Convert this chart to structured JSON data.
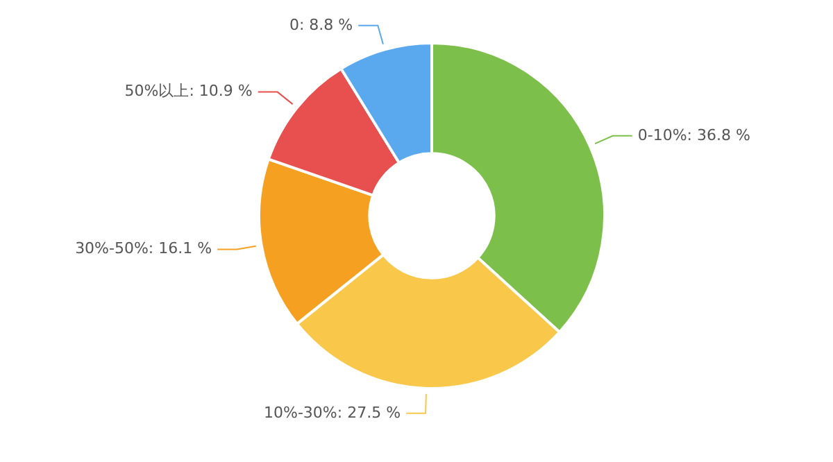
{
  "chart_data": {
    "type": "donut",
    "categories": [
      "0-10%",
      "10%-30%",
      "30%-50%",
      "50%以上",
      "0"
    ],
    "values": [
      36.8,
      27.5,
      16.1,
      10.9,
      8.8
    ],
    "value_labels": [
      "36.8 %",
      "27.5 %",
      "16.1 %",
      "10.9 %",
      "8.8 %"
    ],
    "colors": [
      "#7cc04b",
      "#f9c74a",
      "#f5a020",
      "#e84f4f",
      "#5aa9ee"
    ]
  }
}
